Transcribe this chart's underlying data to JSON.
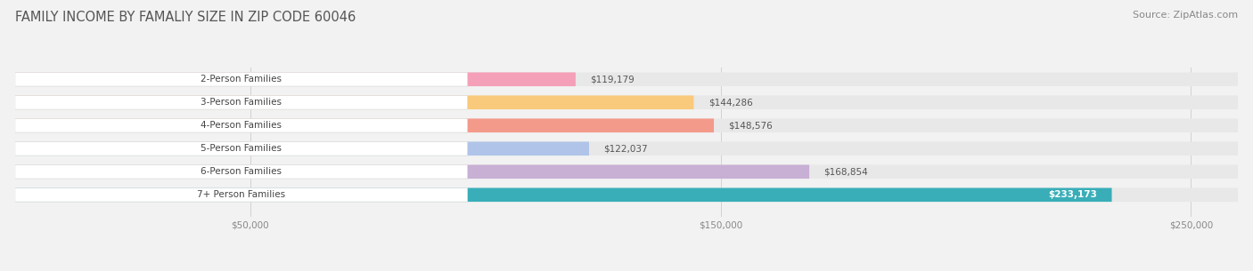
{
  "title": "FAMILY INCOME BY FAMALIY SIZE IN ZIP CODE 60046",
  "source": "Source: ZipAtlas.com",
  "categories": [
    "2-Person Families",
    "3-Person Families",
    "4-Person Families",
    "5-Person Families",
    "6-Person Families",
    "7+ Person Families"
  ],
  "values": [
    119179,
    144286,
    148576,
    122037,
    168854,
    233173
  ],
  "value_labels": [
    "$119,179",
    "$144,286",
    "$148,576",
    "$122,037",
    "$168,854",
    "$233,173"
  ],
  "bar_colors": [
    "#f4a0b8",
    "#f9c97c",
    "#f49a8b",
    "#afc4e8",
    "#c8afd4",
    "#39aeb8"
  ],
  "bg_color": "#f2f2f2",
  "bar_bg_color": "#e8e8e8",
  "xlim_max": 260000,
  "xticks": [
    50000,
    150000,
    250000
  ],
  "xtick_labels": [
    "$50,000",
    "$150,000",
    "$250,000"
  ],
  "title_fontsize": 10.5,
  "source_fontsize": 8,
  "bar_label_fontsize": 7.5,
  "value_label_fontsize": 7.5
}
